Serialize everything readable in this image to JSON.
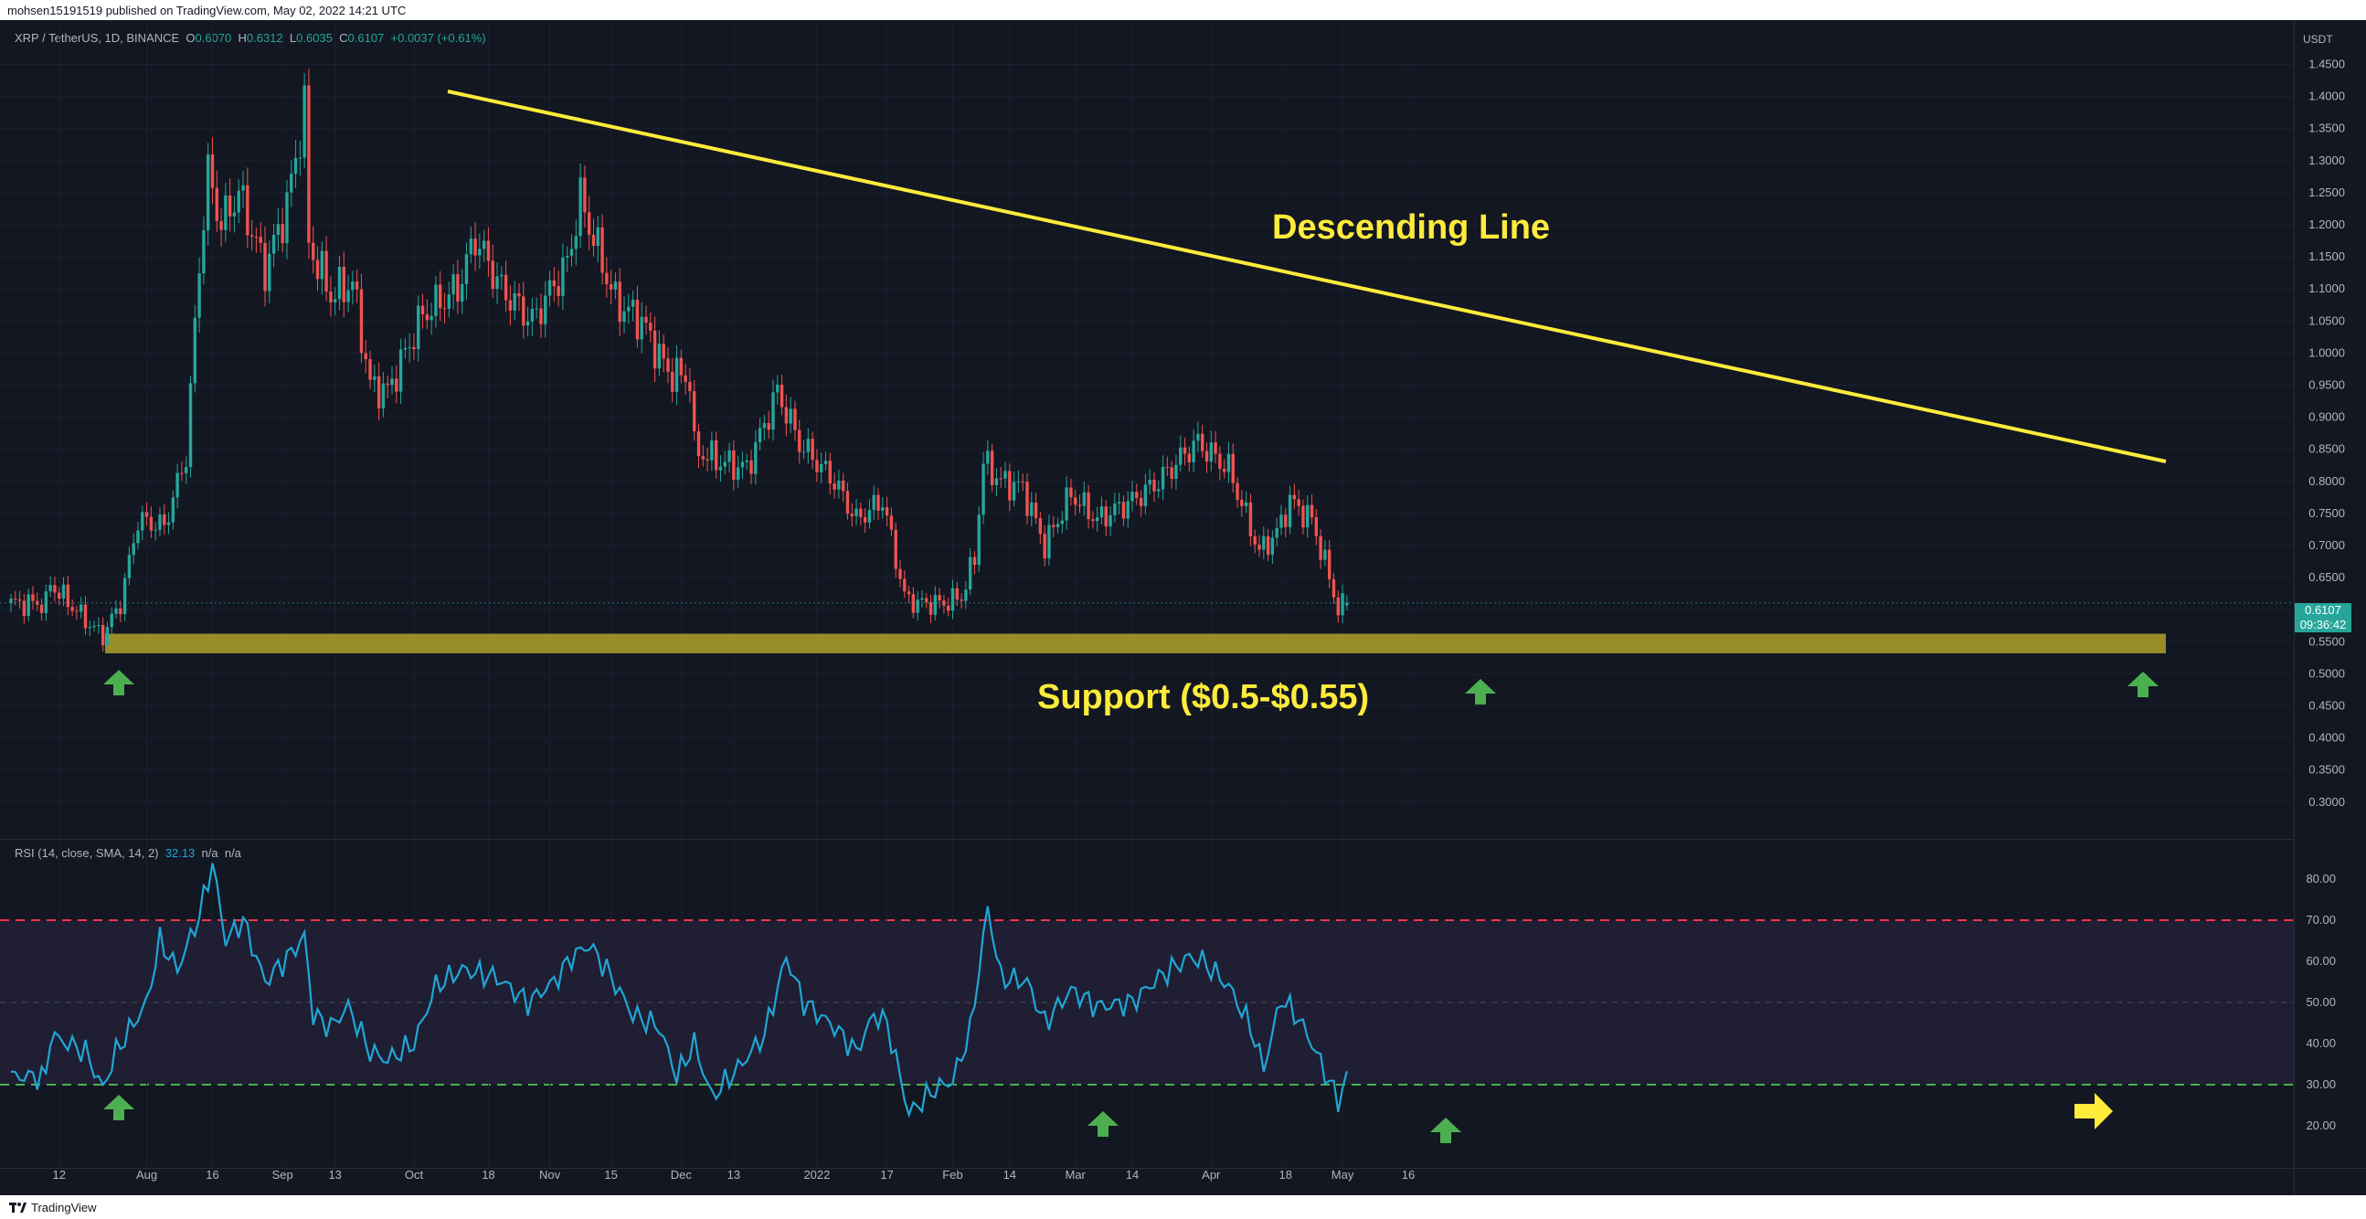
{
  "header": {
    "published_text": "mohsen15191519 published on TradingView.com, May 02, 2022 14:21 UTC"
  },
  "footer": {
    "brand": "TradingView"
  },
  "legend": {
    "symbol": "XRP / TetherUS, 1D, BINANCE",
    "open_label": "O",
    "open": "0.6070",
    "high_label": "H",
    "high": "0.6312",
    "low_label": "L",
    "low": "0.6035",
    "close_label": "C",
    "close": "0.6107",
    "change": "+0.0037 (+0.61%)"
  },
  "rsi_legend": {
    "label": "RSI (14, close, SMA, 14, 2)",
    "value": "32.13",
    "na1": "n/a",
    "na2": "n/a"
  },
  "axis": {
    "currency": "USDT",
    "current_price": "0.6107",
    "countdown": "09:36:42"
  },
  "annotations": {
    "descending_line": "Descending Line",
    "support": "Support ($0.5-$0.55)"
  },
  "colors": {
    "background": "#131722",
    "up": "#26a69a",
    "down": "#ef5350",
    "trendline": "#ffeb3b",
    "support_zone": "#a89a2a",
    "rsi_line": "#21a5d6",
    "rsi_overbought": "#f23645",
    "rsi_oversold": "#4caf50",
    "rsi_band": "#2a2440",
    "arrow_green": "#4caf50",
    "arrow_yellow": "#ffeb3b"
  },
  "chart_data": [
    {
      "type": "candlestick",
      "title": "XRP / TetherUS, 1D, BINANCE",
      "ylim": [
        0.27,
        1.48
      ],
      "y_ticks": [
        "1.4500",
        "1.4000",
        "1.3500",
        "1.3000",
        "1.2500",
        "1.2000",
        "1.1500",
        "1.1000",
        "1.0500",
        "1.0000",
        "0.9500",
        "0.9000",
        "0.8500",
        "0.8000",
        "0.7500",
        "0.7000",
        "0.6500",
        "0.6000",
        "0.5500",
        "0.5000",
        "0.4500",
        "0.4000",
        "0.3500",
        "0.3000"
      ],
      "x_ticks": [
        "12",
        "Aug",
        "16",
        "Sep",
        "13",
        "Oct",
        "18",
        "Nov",
        "15",
        "Dec",
        "13",
        "2022",
        "17",
        "Feb",
        "14",
        "Mar",
        "14",
        "Apr",
        "18",
        "May",
        "16"
      ],
      "close_anchors": [
        [
          "2021-07-10",
          0.64
        ],
        [
          "2021-07-20",
          0.57
        ],
        [
          "2021-07-22",
          0.56
        ],
        [
          "2021-07-26",
          0.61
        ],
        [
          "2021-07-30",
          0.74
        ],
        [
          "2021-08-05",
          0.73
        ],
        [
          "2021-08-10",
          0.84
        ],
        [
          "2021-08-13",
          1.14
        ],
        [
          "2021-08-15",
          1.28
        ],
        [
          "2021-08-18",
          1.2
        ],
        [
          "2021-08-22",
          1.25
        ],
        [
          "2021-08-28",
          1.13
        ],
        [
          "2021-09-02",
          1.23
        ],
        [
          "2021-09-06",
          1.38
        ],
        [
          "2021-09-07",
          1.17
        ],
        [
          "2021-09-12",
          1.09
        ],
        [
          "2021-09-17",
          1.11
        ],
        [
          "2021-09-21",
          0.95
        ],
        [
          "2021-09-25",
          0.94
        ],
        [
          "2021-10-03",
          1.06
        ],
        [
          "2021-10-11",
          1.1
        ],
        [
          "2021-10-15",
          1.18
        ],
        [
          "2021-10-21",
          1.1
        ],
        [
          "2021-10-28",
          1.05
        ],
        [
          "2021-11-05",
          1.14
        ],
        [
          "2021-11-08",
          1.24
        ],
        [
          "2021-11-10",
          1.2
        ],
        [
          "2021-11-16",
          1.08
        ],
        [
          "2021-11-22",
          1.05
        ],
        [
          "2021-11-28",
          0.97
        ],
        [
          "2021-12-03",
          0.96
        ],
        [
          "2021-12-04",
          0.85
        ],
        [
          "2021-12-10",
          0.83
        ],
        [
          "2021-12-16",
          0.82
        ],
        [
          "2021-12-23",
          0.94
        ],
        [
          "2021-12-28",
          0.86
        ],
        [
          "2022-01-05",
          0.8
        ],
        [
          "2022-01-10",
          0.74
        ],
        [
          "2022-01-16",
          0.77
        ],
        [
          "2022-01-21",
          0.62
        ],
        [
          "2022-01-24",
          0.61
        ],
        [
          "2022-01-30",
          0.61
        ],
        [
          "2022-02-03",
          0.62
        ],
        [
          "2022-02-06",
          0.68
        ],
        [
          "2022-02-08",
          0.83
        ],
        [
          "2022-02-12",
          0.8
        ],
        [
          "2022-02-17",
          0.79
        ],
        [
          "2022-02-22",
          0.7
        ],
        [
          "2022-02-28",
          0.78
        ],
        [
          "2022-03-06",
          0.74
        ],
        [
          "2022-03-14",
          0.77
        ],
        [
          "2022-03-20",
          0.8
        ],
        [
          "2022-03-27",
          0.85
        ],
        [
          "2022-03-29",
          0.86
        ],
        [
          "2022-04-05",
          0.82
        ],
        [
          "2022-04-12",
          0.69
        ],
        [
          "2022-04-16",
          0.72
        ],
        [
          "2022-04-19",
          0.77
        ],
        [
          "2022-04-24",
          0.74
        ],
        [
          "2022-04-28",
          0.65
        ],
        [
          "2022-04-30",
          0.6
        ],
        [
          "2022-05-02",
          0.61
        ]
      ]
    },
    {
      "type": "line",
      "title": "RSI (14, close, SMA, 14, 2)",
      "ylim": [
        12,
        89
      ],
      "y_ticks": [
        "80.00",
        "70.00",
        "60.00",
        "50.00",
        "40.00",
        "30.00",
        "20.00"
      ],
      "levels": {
        "overbought": 70,
        "middle": 50,
        "oversold": 30
      },
      "anchors": [
        [
          "2021-07-10",
          42
        ],
        [
          "2021-07-18",
          38
        ],
        [
          "2021-07-22",
          29
        ],
        [
          "2021-07-25",
          38
        ],
        [
          "2021-08-01",
          50
        ],
        [
          "2021-08-04",
          65
        ],
        [
          "2021-08-08",
          58
        ],
        [
          "2021-08-13",
          71
        ],
        [
          "2021-08-16",
          84
        ],
        [
          "2021-08-19",
          65
        ],
        [
          "2021-08-23",
          70
        ],
        [
          "2021-08-28",
          55
        ],
        [
          "2021-09-03",
          62
        ],
        [
          "2021-09-06",
          66
        ],
        [
          "2021-09-08",
          47
        ],
        [
          "2021-09-12",
          44
        ],
        [
          "2021-09-16",
          49
        ],
        [
          "2021-09-21",
          38
        ],
        [
          "2021-09-25",
          36
        ],
        [
          "2021-10-01",
          40
        ],
        [
          "2021-10-06",
          54
        ],
        [
          "2021-10-12",
          58
        ],
        [
          "2021-10-20",
          56
        ],
        [
          "2021-10-27",
          50
        ],
        [
          "2021-11-02",
          55
        ],
        [
          "2021-11-06",
          61
        ],
        [
          "2021-11-10",
          64
        ],
        [
          "2021-11-14",
          58
        ],
        [
          "2021-11-20",
          47
        ],
        [
          "2021-11-26",
          44
        ],
        [
          "2021-11-30",
          32
        ],
        [
          "2021-12-04",
          40
        ],
        [
          "2021-12-08",
          27
        ],
        [
          "2021-12-14",
          34
        ],
        [
          "2021-12-20",
          42
        ],
        [
          "2021-12-25",
          61
        ],
        [
          "2021-12-29",
          50
        ],
        [
          "2022-01-05",
          44
        ],
        [
          "2022-01-10",
          38
        ],
        [
          "2022-01-14",
          47
        ],
        [
          "2022-01-17",
          45
        ],
        [
          "2022-01-22",
          23
        ],
        [
          "2022-01-28",
          29
        ],
        [
          "2022-02-01",
          31
        ],
        [
          "2022-02-05",
          43
        ],
        [
          "2022-02-09",
          73
        ],
        [
          "2022-02-12",
          56
        ],
        [
          "2022-02-18",
          55
        ],
        [
          "2022-02-22",
          45
        ],
        [
          "2022-02-28",
          53
        ],
        [
          "2022-03-06",
          49
        ],
        [
          "2022-03-14",
          50
        ],
        [
          "2022-03-20",
          56
        ],
        [
          "2022-03-27",
          61
        ],
        [
          "2022-03-30",
          60
        ],
        [
          "2022-04-05",
          54
        ],
        [
          "2022-04-10",
          44
        ],
        [
          "2022-04-13",
          34
        ],
        [
          "2022-04-17",
          51
        ],
        [
          "2022-04-21",
          46
        ],
        [
          "2022-04-24",
          40
        ],
        [
          "2022-04-27",
          33
        ],
        [
          "2022-04-30",
          26
        ],
        [
          "2022-05-02",
          32
        ]
      ]
    }
  ]
}
